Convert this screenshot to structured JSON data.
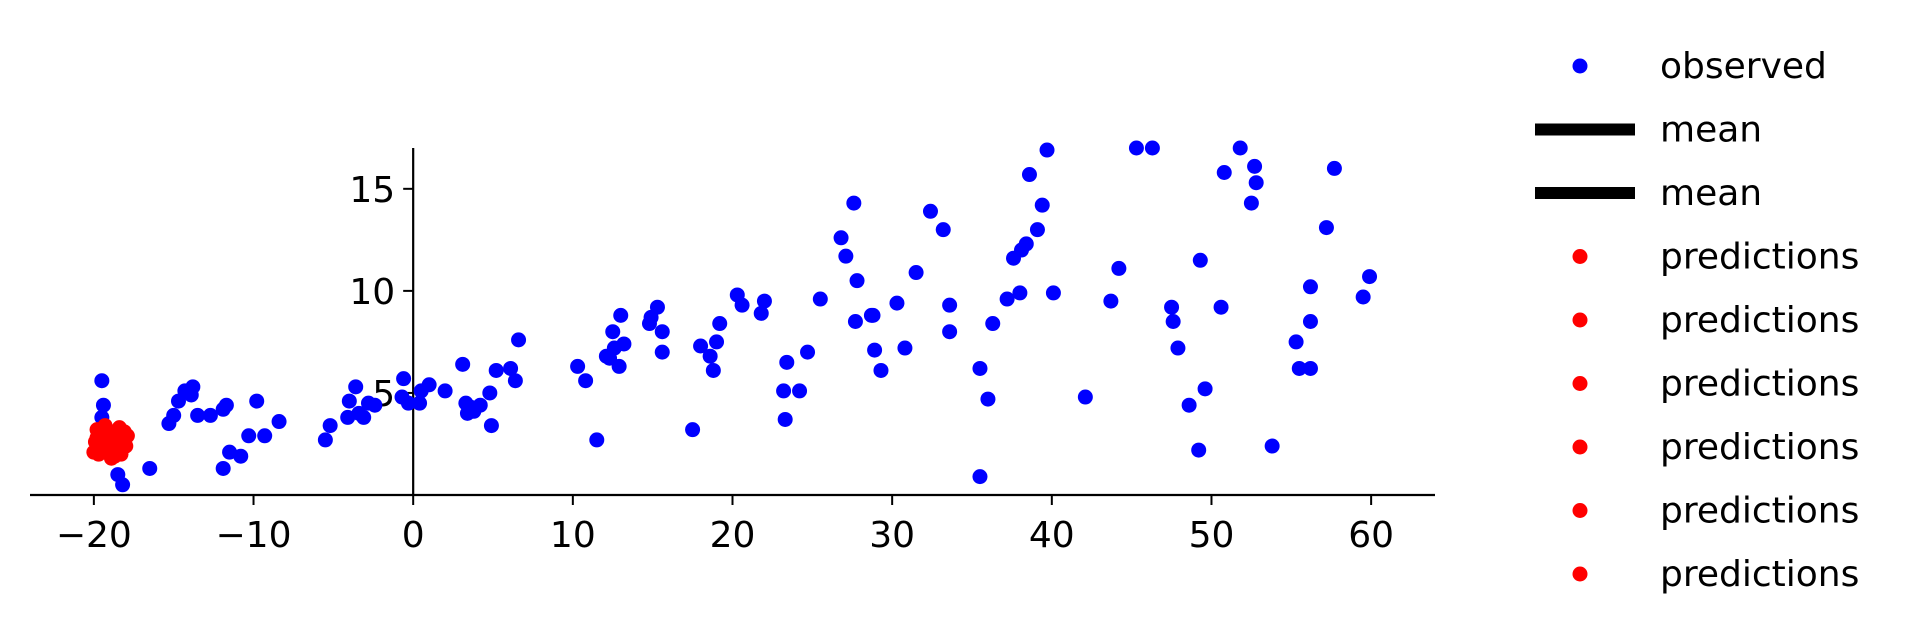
{
  "chart_data": {
    "type": "scatter",
    "title": "",
    "xlabel": "",
    "ylabel": "",
    "xlim": [
      -24,
      64
    ],
    "ylim": [
      0,
      17
    ],
    "x_ticks": [
      -20,
      -10,
      0,
      10,
      20,
      30,
      40,
      50,
      60
    ],
    "x_tick_labels": [
      "−20",
      "−10",
      "0",
      "10",
      "20",
      "30",
      "40",
      "50",
      "60"
    ],
    "y_ticks": [
      5,
      10,
      15
    ],
    "y_tick_labels": [
      "5",
      "10",
      "15"
    ],
    "grid": false,
    "legend_position": "outside-right",
    "colors": {
      "observed": "#0000ff",
      "mean": "#000000",
      "predictions": "#ff0000",
      "axis": "#000000"
    },
    "legend": [
      {
        "label": "observed",
        "marker": "dot",
        "color": "#0000ff"
      },
      {
        "label": "mean",
        "marker": "line",
        "color": "#000000"
      },
      {
        "label": "mean",
        "marker": "line",
        "color": "#000000"
      },
      {
        "label": "predictions",
        "marker": "dot",
        "color": "#ff0000"
      },
      {
        "label": "predictions",
        "marker": "dot",
        "color": "#ff0000"
      },
      {
        "label": "predictions",
        "marker": "dot",
        "color": "#ff0000"
      },
      {
        "label": "predictions",
        "marker": "dot",
        "color": "#ff0000"
      },
      {
        "label": "predictions",
        "marker": "dot",
        "color": "#ff0000"
      },
      {
        "label": "predictions",
        "marker": "dot",
        "color": "#ff0000"
      }
    ],
    "series": [
      {
        "name": "observed",
        "color": "#0000ff",
        "points": [
          [
            -19.5,
            5.6
          ],
          [
            -19.4,
            4.4
          ],
          [
            -19.5,
            3.8
          ],
          [
            -18.9,
            3.0
          ],
          [
            -18.5,
            1.0
          ],
          [
            -18.2,
            0.5
          ],
          [
            -16.5,
            1.3
          ],
          [
            -15.3,
            3.5
          ],
          [
            -15.0,
            3.9
          ],
          [
            -14.7,
            4.6
          ],
          [
            -14.3,
            5.1
          ],
          [
            -13.9,
            4.9
          ],
          [
            -13.8,
            5.3
          ],
          [
            -13.5,
            3.9
          ],
          [
            -12.7,
            3.9
          ],
          [
            -11.9,
            4.2
          ],
          [
            -11.7,
            4.4
          ],
          [
            -11.5,
            2.1
          ],
          [
            -11.9,
            1.3
          ],
          [
            -10.8,
            1.9
          ],
          [
            -10.3,
            2.9
          ],
          [
            -9.8,
            4.6
          ],
          [
            -9.3,
            2.9
          ],
          [
            -8.4,
            3.6
          ],
          [
            -5.5,
            2.7
          ],
          [
            -5.2,
            3.4
          ],
          [
            -4.1,
            3.8
          ],
          [
            -4.0,
            4.6
          ],
          [
            -3.6,
            5.3
          ],
          [
            -3.4,
            4.0
          ],
          [
            -3.1,
            3.8
          ],
          [
            -2.8,
            4.5
          ],
          [
            -2.4,
            4.4
          ],
          [
            -0.7,
            4.8
          ],
          [
            -0.6,
            5.7
          ],
          [
            -0.3,
            4.5
          ],
          [
            0.4,
            4.5
          ],
          [
            0.5,
            5.1
          ],
          [
            1.0,
            5.4
          ],
          [
            2.0,
            5.1
          ],
          [
            3.1,
            6.4
          ],
          [
            3.3,
            4.5
          ],
          [
            3.4,
            4.0
          ],
          [
            3.6,
            4.3
          ],
          [
            3.8,
            4.1
          ],
          [
            4.2,
            4.4
          ],
          [
            4.8,
            5.0
          ],
          [
            4.9,
            3.4
          ],
          [
            5.2,
            6.1
          ],
          [
            6.1,
            6.2
          ],
          [
            6.4,
            5.6
          ],
          [
            6.6,
            7.6
          ],
          [
            10.3,
            6.3
          ],
          [
            10.8,
            5.6
          ],
          [
            11.5,
            2.7
          ],
          [
            12.1,
            6.8
          ],
          [
            12.3,
            6.7
          ],
          [
            12.5,
            8.0
          ],
          [
            12.6,
            7.2
          ],
          [
            12.9,
            6.3
          ],
          [
            13.0,
            8.8
          ],
          [
            13.2,
            7.4
          ],
          [
            14.8,
            8.4
          ],
          [
            14.9,
            8.7
          ],
          [
            15.3,
            9.2
          ],
          [
            15.6,
            8.0
          ],
          [
            15.6,
            7.0
          ],
          [
            17.5,
            3.2
          ],
          [
            18.0,
            7.3
          ],
          [
            18.6,
            6.8
          ],
          [
            18.8,
            6.1
          ],
          [
            19.0,
            7.5
          ],
          [
            19.2,
            8.4
          ],
          [
            20.3,
            9.8
          ],
          [
            20.6,
            9.3
          ],
          [
            21.8,
            8.9
          ],
          [
            22.0,
            9.5
          ],
          [
            23.2,
            5.1
          ],
          [
            23.3,
            3.7
          ],
          [
            23.4,
            6.5
          ],
          [
            24.2,
            5.1
          ],
          [
            24.7,
            7.0
          ],
          [
            25.5,
            9.6
          ],
          [
            26.8,
            12.6
          ],
          [
            27.1,
            11.7
          ],
          [
            27.7,
            8.5
          ],
          [
            27.6,
            14.3
          ],
          [
            27.8,
            10.5
          ],
          [
            28.7,
            8.8
          ],
          [
            28.8,
            8.8
          ],
          [
            28.9,
            7.1
          ],
          [
            29.3,
            6.1
          ],
          [
            30.3,
            9.4
          ],
          [
            30.8,
            7.2
          ],
          [
            31.5,
            10.9
          ],
          [
            32.4,
            13.9
          ],
          [
            33.2,
            13.0
          ],
          [
            33.6,
            8.0
          ],
          [
            33.6,
            9.3
          ],
          [
            35.5,
            6.2
          ],
          [
            35.5,
            0.9
          ],
          [
            36.0,
            4.7
          ],
          [
            36.3,
            8.4
          ],
          [
            37.2,
            9.6
          ],
          [
            37.6,
            11.6
          ],
          [
            38.0,
            9.9
          ],
          [
            38.1,
            12.0
          ],
          [
            38.4,
            12.3
          ],
          [
            38.6,
            15.7
          ],
          [
            39.1,
            13.0
          ],
          [
            39.4,
            14.2
          ],
          [
            39.7,
            16.9
          ],
          [
            40.1,
            9.9
          ],
          [
            42.1,
            4.8
          ],
          [
            43.7,
            9.5
          ],
          [
            44.2,
            11.1
          ],
          [
            45.3,
            17.1
          ],
          [
            46.3,
            17.1
          ],
          [
            47.5,
            9.2
          ],
          [
            47.6,
            8.5
          ],
          [
            47.9,
            7.2
          ],
          [
            48.6,
            4.4
          ],
          [
            49.2,
            2.2
          ],
          [
            49.3,
            11.5
          ],
          [
            49.6,
            5.2
          ],
          [
            50.6,
            9.2
          ],
          [
            50.8,
            15.8
          ],
          [
            51.8,
            17.2
          ],
          [
            52.5,
            14.3
          ],
          [
            52.7,
            16.1
          ],
          [
            52.8,
            15.3
          ],
          [
            53.8,
            2.4
          ],
          [
            55.3,
            7.5
          ],
          [
            55.5,
            6.2
          ],
          [
            56.2,
            6.2
          ],
          [
            56.2,
            8.5
          ],
          [
            56.2,
            10.2
          ],
          [
            57.2,
            13.1
          ],
          [
            57.7,
            16.0
          ],
          [
            59.5,
            9.7
          ],
          [
            59.9,
            10.7
          ]
        ]
      },
      {
        "name": "predictions",
        "color": "#ff0000",
        "points": [
          [
            -20.0,
            2.1
          ],
          [
            -19.9,
            2.6
          ],
          [
            -19.8,
            3.2
          ],
          [
            -19.6,
            2.9
          ],
          [
            -19.5,
            2.4
          ],
          [
            -19.3,
            3.4
          ],
          [
            -19.2,
            2.7
          ],
          [
            -19.1,
            2.2
          ],
          [
            -19.0,
            3.1
          ],
          [
            -18.9,
            1.8
          ],
          [
            -18.8,
            2.5
          ],
          [
            -18.7,
            3.0
          ],
          [
            -18.6,
            2.3
          ],
          [
            -18.5,
            2.8
          ],
          [
            -18.4,
            3.3
          ],
          [
            -18.3,
            2.0
          ],
          [
            -18.2,
            2.6
          ],
          [
            -18.1,
            3.1
          ],
          [
            -18.0,
            2.4
          ],
          [
            -17.9,
            2.9
          ],
          [
            -19.7,
            2.0
          ],
          [
            -18.7,
            1.9
          ],
          [
            -19.4,
            3.0
          ],
          [
            -18.1,
            2.7
          ],
          [
            -19.8,
            2.8
          ],
          [
            -18.4,
            2.2
          ],
          [
            -19.0,
            2.5
          ]
        ]
      }
    ]
  }
}
